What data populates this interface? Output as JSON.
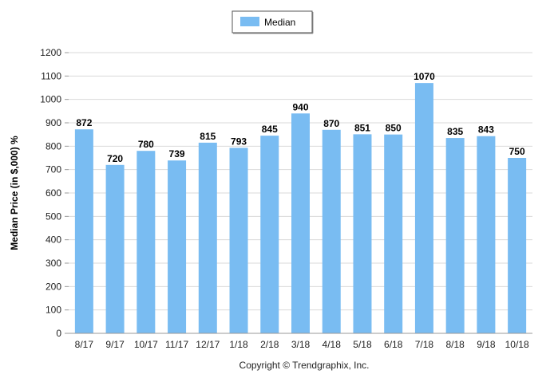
{
  "chart_data": {
    "type": "bar",
    "categories": [
      "8/17",
      "9/17",
      "10/17",
      "11/17",
      "12/17",
      "1/18",
      "2/18",
      "3/18",
      "4/18",
      "5/18",
      "6/18",
      "7/18",
      "8/18",
      "9/18",
      "10/18"
    ],
    "series": [
      {
        "name": "Median",
        "values": [
          872,
          720,
          780,
          739,
          815,
          793,
          845,
          940,
          870,
          851,
          850,
          1070,
          835,
          843,
          750
        ],
        "color": "#79bcf2"
      }
    ],
    "title": "",
    "xlabel": "",
    "ylabel": "Median Price (in $,000) %",
    "ylim": [
      0,
      1200
    ],
    "yticks": [
      0,
      100,
      200,
      300,
      400,
      500,
      600,
      700,
      800,
      900,
      1000,
      1100,
      1200
    ],
    "grid": true,
    "legend_position": "top-center",
    "data_labels": true
  },
  "footer": {
    "copyright": "Copyright © Trendgraphix, Inc."
  }
}
